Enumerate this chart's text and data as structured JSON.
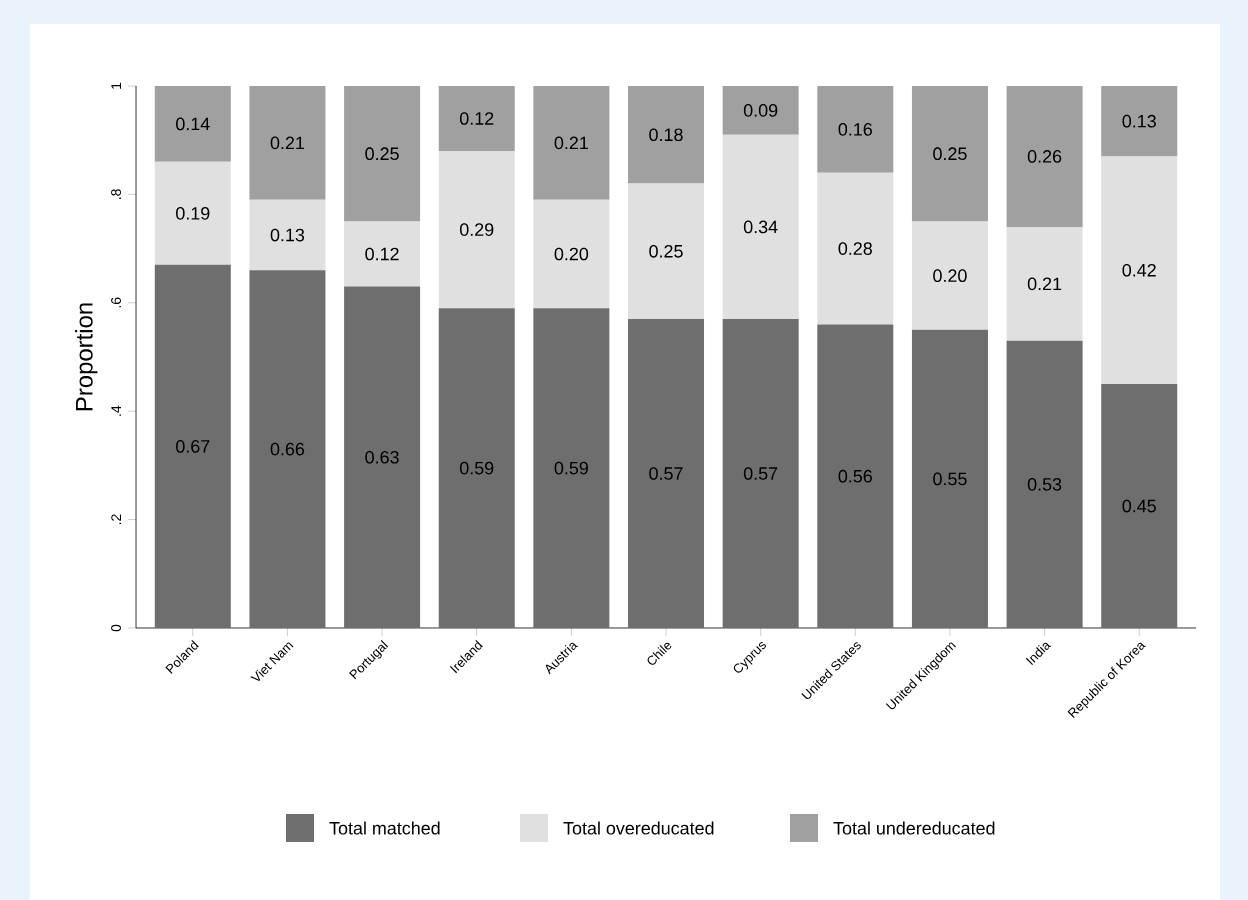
{
  "chart_data": {
    "type": "bar",
    "stacked": true,
    "ylabel": "Proportion",
    "categories": [
      "Poland",
      "Viet Nam",
      "Portugal",
      "Ireland",
      "Austria",
      "Chile",
      "Cyprus",
      "United States",
      "United Kingdom",
      "India",
      "Republic of Korea"
    ],
    "ylim": [
      0,
      1
    ],
    "yticks": [
      {
        "value": 0,
        "label": "0"
      },
      {
        "value": 0.2,
        "label": ".2"
      },
      {
        "value": 0.4,
        "label": ".4"
      },
      {
        "value": 0.6,
        "label": ".6"
      },
      {
        "value": 0.8,
        "label": ".8"
      },
      {
        "value": 1,
        "label": "1"
      }
    ],
    "grid": false,
    "legend": "bottom",
    "series": [
      {
        "name": "Total matched",
        "color": "#6e6e6e",
        "values": [
          0.67,
          0.66,
          0.63,
          0.59,
          0.59,
          0.57,
          0.57,
          0.56,
          0.55,
          0.53,
          0.45
        ],
        "value_labels": [
          "0.67",
          "0.66",
          "0.63",
          "0.59",
          "0.59",
          "0.57",
          "0.57",
          "0.56",
          "0.55",
          "0.53",
          "0.45"
        ]
      },
      {
        "name": "Total overeducated",
        "color": "#e0e0e0",
        "values": [
          0.19,
          0.13,
          0.12,
          0.29,
          0.2,
          0.25,
          0.34,
          0.28,
          0.2,
          0.21,
          0.42
        ],
        "value_labels": [
          "0.19",
          "0.13",
          "0.12",
          "0.29",
          "0.20",
          "0.25",
          "0.34",
          "0.28",
          "0.20",
          "0.21",
          "0.42"
        ]
      },
      {
        "name": "Total undereducated",
        "color": "#a0a0a0",
        "values": [
          0.14,
          0.21,
          0.25,
          0.12,
          0.21,
          0.18,
          0.09,
          0.16,
          0.25,
          0.26,
          0.13
        ],
        "value_labels": [
          "0.14",
          "0.21",
          "0.25",
          "0.12",
          "0.21",
          "0.18",
          "0.09",
          "0.16",
          "0.25",
          "0.26",
          "0.13"
        ]
      }
    ]
  }
}
